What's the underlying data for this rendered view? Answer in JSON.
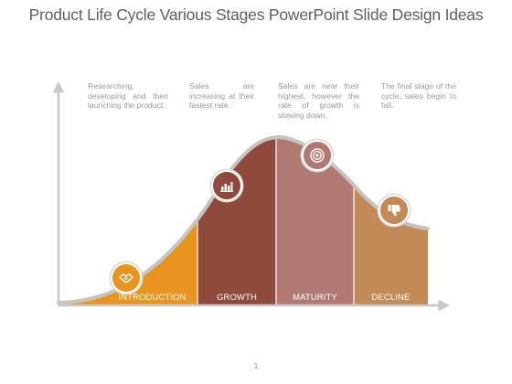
{
  "title": "Product Life Cycle Various Stages PowerPoint Slide Design Ideas",
  "stages": [
    {
      "label": "INTRODUCTION",
      "description": "Researching, developing and then launching the product.",
      "icon": "handshake-icon",
      "color": "#e8941f"
    },
    {
      "label": "GROWTH",
      "description": "Sales are increasing at their fastest rate.",
      "icon": "bar-chart-icon",
      "color": "#8f4a3b"
    },
    {
      "label": "MATURITY",
      "description": "Sales are near their highest, however the rate of growth is slowing down.",
      "icon": "target-icon",
      "color": "#b07a73"
    },
    {
      "label": "DECLINE",
      "description": "The final stage of the cycle, sales begin to fall.",
      "icon": "thumbs-down-icon",
      "color": "#c18a57"
    }
  ],
  "page_number": "1",
  "colors": {
    "axis": "#c8c8c8",
    "curve": "#c4c4c4",
    "title": "#5f5f5f"
  }
}
